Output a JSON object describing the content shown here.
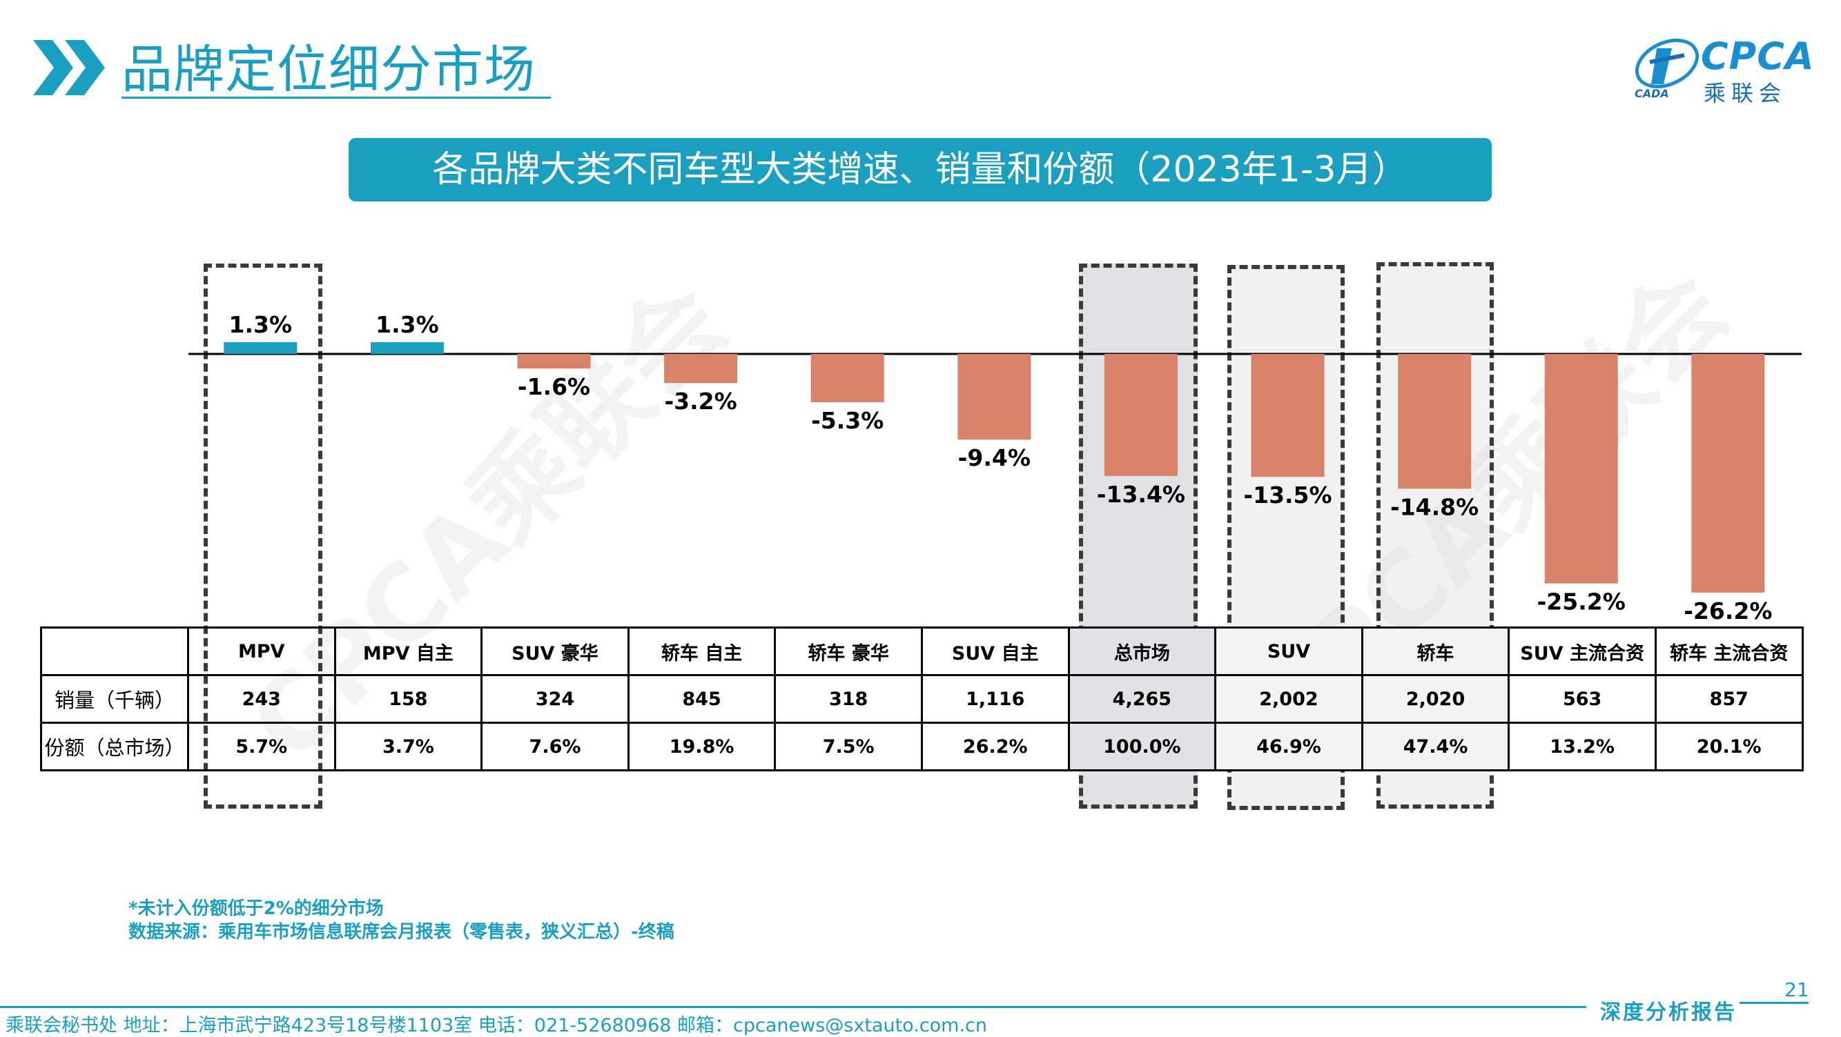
{
  "header": {
    "title": "品牌定位细分市场",
    "subtitle": "各品牌大类不同车型大类增速、销量和份额（2023年1-3月）"
  },
  "logo": {
    "brand_en": "CPCA",
    "brand_cn": "乘联会",
    "small_text": "CADA"
  },
  "watermark": "CPCA乘联会",
  "chart_data": {
    "type": "bar",
    "categories": [
      "MPV",
      "MPV 自主",
      "SUV 豪华",
      "轿车 自主",
      "轿车 豪华",
      "SUV 自主",
      "总市场",
      "SUV",
      "轿车",
      "SUV 主流合资",
      "轿车 主流合资"
    ],
    "values": [
      1.3,
      1.3,
      -1.6,
      -3.2,
      -5.3,
      -9.4,
      -13.4,
      -13.5,
      -14.8,
      -25.2,
      -26.2
    ],
    "labels": [
      "1.3%",
      "1.3%",
      "-1.6%",
      "-3.2%",
      "-5.3%",
      "-9.4%",
      "-13.4%",
      "-13.5%",
      "-14.8%",
      "-25.2%",
      "-26.2%"
    ],
    "positive_color": "#1a9fc0",
    "negative_color": "#d9826a",
    "highlighted": [
      "MPV",
      "总市场",
      "SUV",
      "轿车"
    ]
  },
  "table": {
    "row_labels": [
      "销量（千辆）",
      "份额（总市场）"
    ],
    "sales": [
      "243",
      "158",
      "324",
      "845",
      "318",
      "1,116",
      "4,265",
      "2,002",
      "2,020",
      "563",
      "857"
    ],
    "share": [
      "5.7%",
      "3.7%",
      "7.6%",
      "19.8%",
      "7.5%",
      "26.2%",
      "100.0%",
      "46.9%",
      "47.4%",
      "13.2%",
      "20.1%"
    ]
  },
  "notes": {
    "note1": "*未计入份额低于2%的细分市场",
    "note2": "数据来源：乘用车市场信息联席会月报表（零售表，狭义汇总）-终稿"
  },
  "footer": {
    "page_number": "21",
    "contact": "乘联会秘书处   地址：上海市武宁路423号18号楼1103室   电话：021-52680968   邮箱：cpcanews@sxtauto.com.cn",
    "report_label": "深度分析报告"
  }
}
